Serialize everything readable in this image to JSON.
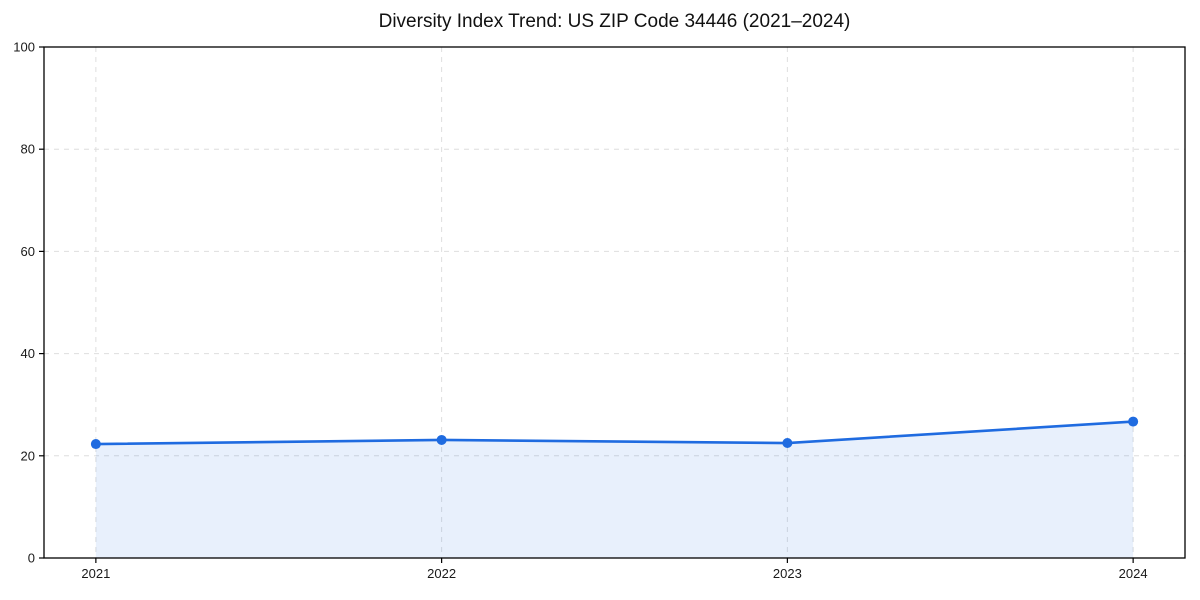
{
  "figure": {
    "background": "#ffffff"
  },
  "chart_data": {
    "type": "area",
    "title": "Diversity Index Trend: US ZIP Code 34446 (2021–2024)",
    "x": [
      2021,
      2022,
      2023,
      2024
    ],
    "series": [
      {
        "name": "Diversity Index",
        "values": [
          22.3,
          23.1,
          22.5,
          26.7
        ]
      }
    ],
    "xlabel": "",
    "ylabel": "",
    "ylim": [
      0,
      100
    ],
    "yticks": [
      0,
      20,
      40,
      60,
      80,
      100
    ],
    "xticks": [
      "2021",
      "2022",
      "2023",
      "2024"
    ],
    "grid": true,
    "grid_style": "dashed",
    "legend": "none",
    "marker": "circle",
    "line_width": 2.6,
    "marker_radius": 5,
    "colors": {
      "line": "#1f6be0",
      "marker": "#1f6be0",
      "fill": "#1f6be0",
      "fill_opacity": 0.1,
      "grid": "#dedede",
      "spine": "#000000",
      "tick_label": "#1a1a1a",
      "title": "#111111"
    }
  }
}
